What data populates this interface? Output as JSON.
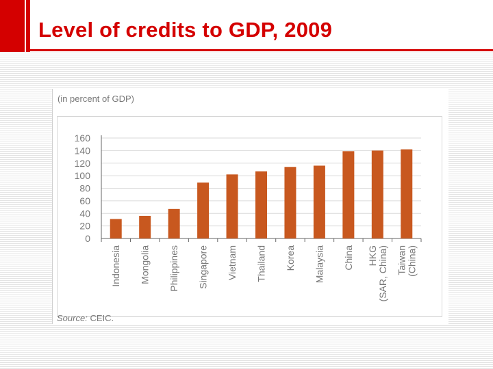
{
  "slide": {
    "title": "Level of credits to GDP, 2009"
  },
  "colors": {
    "title": "#d40000",
    "bar": "#c8581f",
    "axis_text": "#777777"
  },
  "chart_data": {
    "type": "bar",
    "unit_note": "(in percent of GDP)",
    "categories": [
      [
        "Indonesia"
      ],
      [
        "Mongolia"
      ],
      [
        "Philippines"
      ],
      [
        "Singapore"
      ],
      [
        "Vietnam"
      ],
      [
        "Thailand"
      ],
      [
        "Korea"
      ],
      [
        "Malaysia"
      ],
      [
        "China"
      ],
      [
        "HKG",
        "(SAR, China)"
      ],
      [
        "Taiwan",
        "(China)"
      ]
    ],
    "values": [
      31,
      36,
      47,
      89,
      102,
      107,
      114,
      116,
      139,
      140,
      142
    ],
    "yticks": [
      "0",
      "20",
      "40",
      "60",
      "80",
      "100",
      "120",
      "140",
      "160"
    ],
    "ylim": [
      0,
      160
    ],
    "grid": true,
    "legend": "none",
    "source_label": "Source:",
    "source_text": "CEIC."
  }
}
